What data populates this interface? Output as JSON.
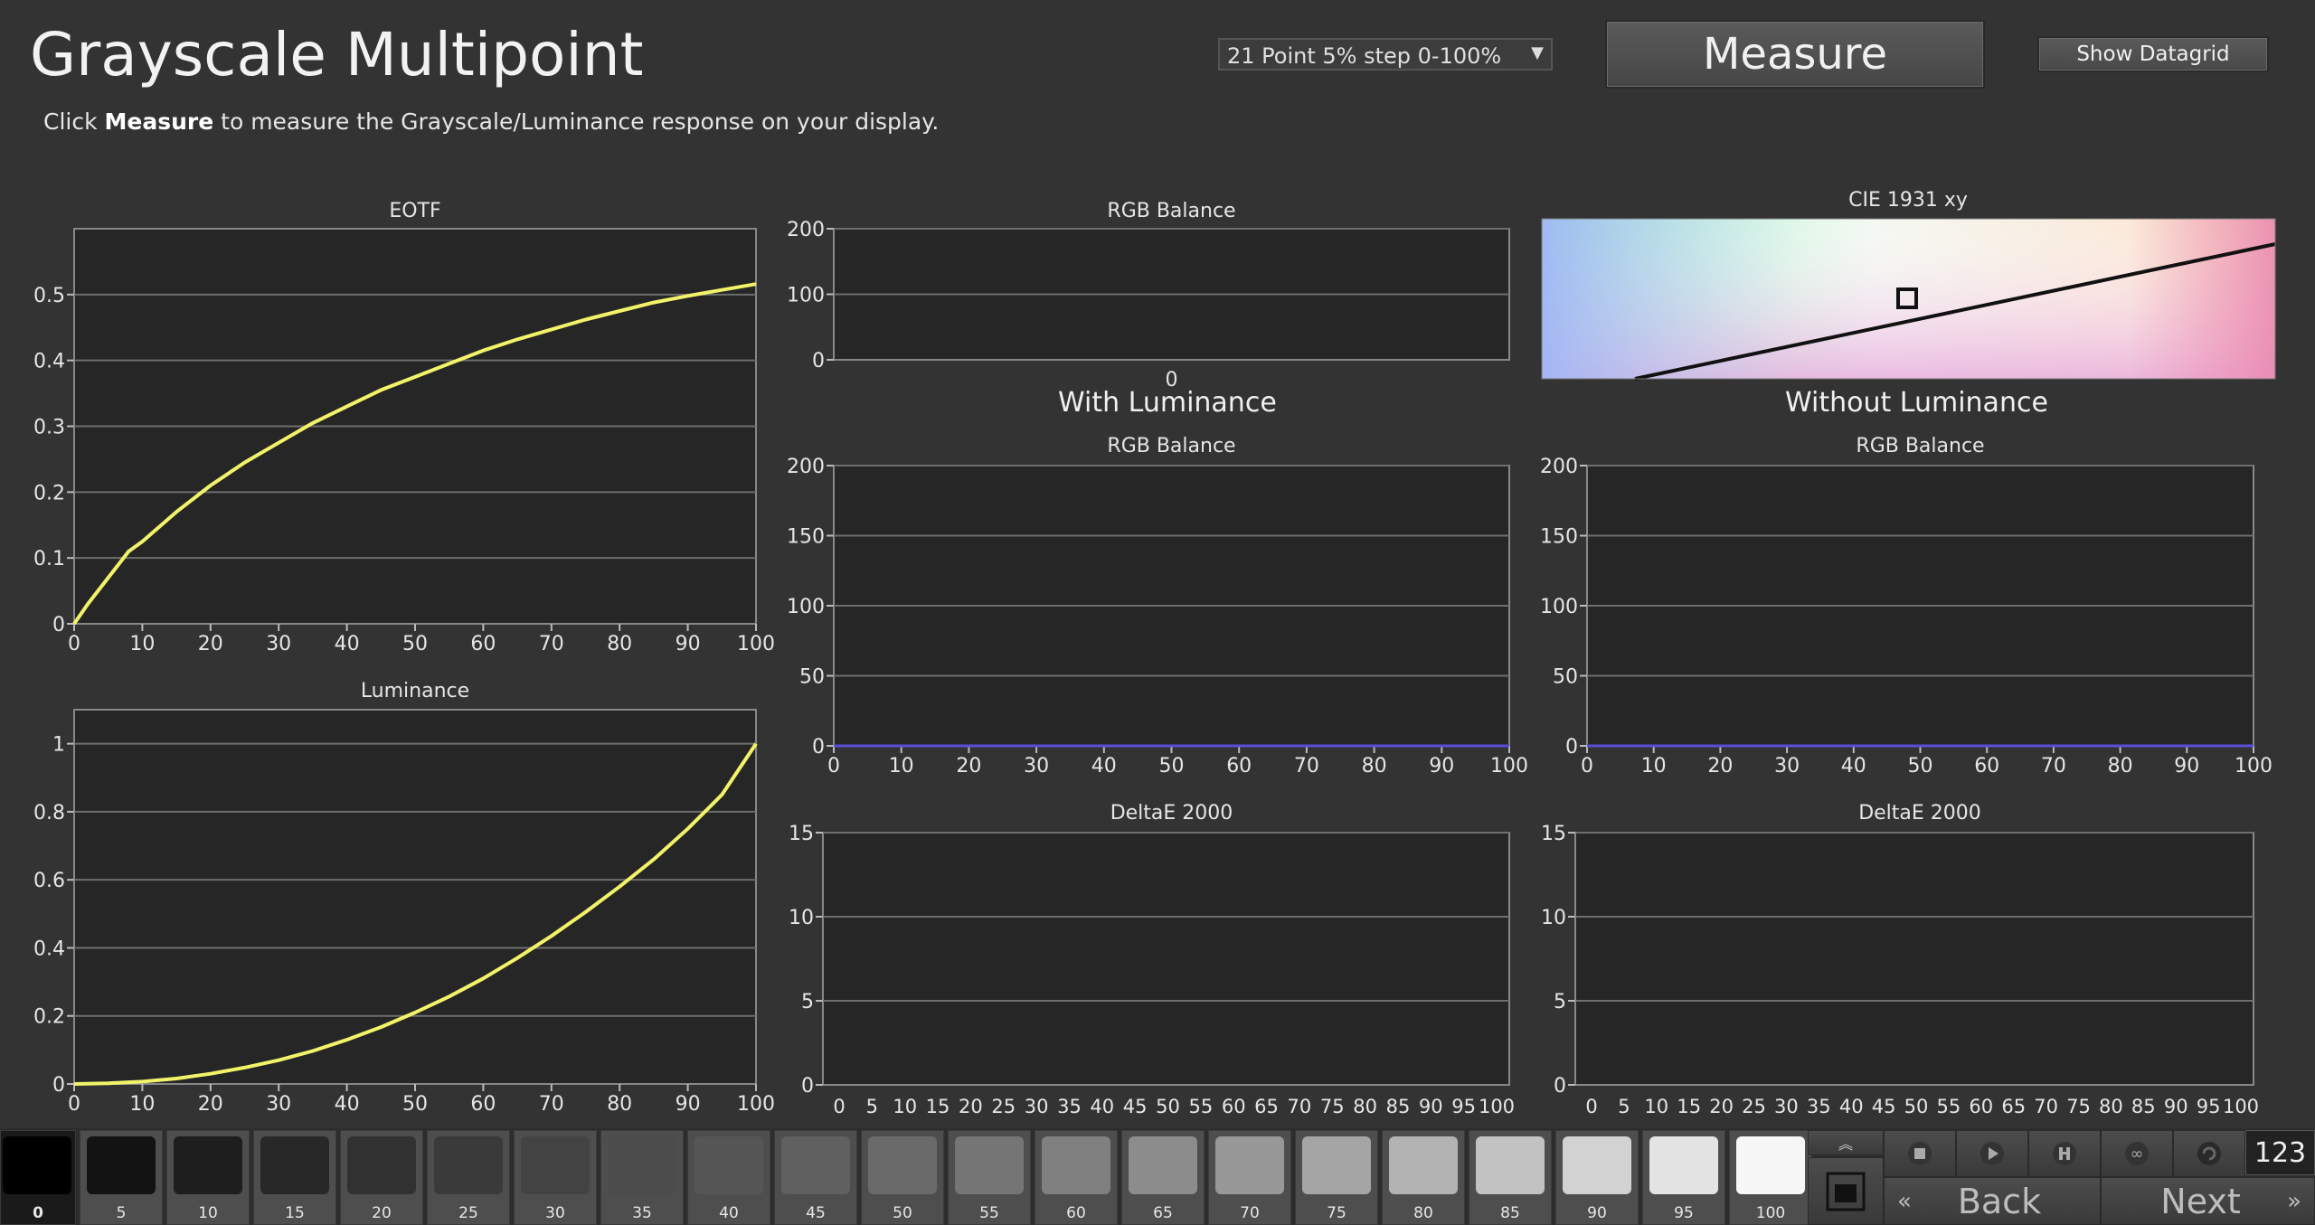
{
  "header": {
    "title": "Grayscale Multipoint",
    "instruction_prefix": "Click ",
    "instruction_bold": "Measure",
    "instruction_suffix": " to measure the Grayscale/Luminance response on your display.",
    "mode_select_value": "21 Point 5% step 0-100%",
    "measure_label": "Measure",
    "datagrid_label": "Show Datagrid"
  },
  "sections": {
    "with_luminance": "With Luminance",
    "without_luminance": "Without Luminance"
  },
  "colors": {
    "background": "#333333",
    "plot_bg": "#262626",
    "grid": "#6e6e6e",
    "curve": "#f3f36a",
    "baseline": "#5a4fd8"
  },
  "chart_data": [
    {
      "id": "eotf",
      "type": "line",
      "title": "EOTF",
      "xlim": [
        0,
        100
      ],
      "ylim": [
        0,
        0.6
      ],
      "x_ticks": [
        "0",
        "10",
        "20",
        "30",
        "40",
        "50",
        "60",
        "70",
        "80",
        "90",
        "100"
      ],
      "y_ticks": [
        "0",
        "0.1",
        "0.2",
        "0.3",
        "0.4",
        "0.5"
      ],
      "series": [
        {
          "x": [
            0,
            2,
            5,
            8,
            10,
            15,
            20,
            25,
            30,
            35,
            40,
            45,
            50,
            55,
            60,
            65,
            70,
            75,
            80,
            85,
            90,
            95,
            100
          ],
          "values": [
            0.0,
            0.03,
            0.07,
            0.11,
            0.125,
            0.17,
            0.21,
            0.245,
            0.275,
            0.305,
            0.33,
            0.355,
            0.375,
            0.395,
            0.415,
            0.432,
            0.447,
            0.462,
            0.475,
            0.488,
            0.498,
            0.507,
            0.516
          ]
        }
      ]
    },
    {
      "id": "luminance",
      "type": "line",
      "title": "Luminance",
      "xlim": [
        0,
        100
      ],
      "ylim": [
        0,
        1.1
      ],
      "x_ticks": [
        "0",
        "10",
        "20",
        "30",
        "40",
        "50",
        "60",
        "70",
        "80",
        "90",
        "100"
      ],
      "y_ticks": [
        "0",
        "0.2",
        "0.4",
        "0.6",
        "0.8",
        "1"
      ],
      "series": [
        {
          "x": [
            0,
            5,
            10,
            15,
            20,
            25,
            30,
            35,
            40,
            45,
            50,
            55,
            60,
            65,
            70,
            75,
            80,
            85,
            90,
            95,
            100
          ],
          "values": [
            0.0,
            0.002,
            0.007,
            0.016,
            0.03,
            0.048,
            0.07,
            0.097,
            0.13,
            0.167,
            0.21,
            0.257,
            0.31,
            0.37,
            0.435,
            0.505,
            0.58,
            0.66,
            0.75,
            0.85,
            1.0
          ]
        }
      ]
    },
    {
      "id": "rgb-balance-top",
      "type": "line",
      "title": "RGB Balance",
      "ylim": [
        0,
        200
      ],
      "x_ticks": [
        "0"
      ],
      "y_ticks": [
        "0",
        "100",
        "200"
      ],
      "series": []
    },
    {
      "id": "cie-1931",
      "type": "scatter",
      "title": "CIE 1931 xy",
      "series": []
    },
    {
      "id": "rgb-balance-with",
      "type": "line",
      "title": "RGB Balance",
      "xlim": [
        0,
        100
      ],
      "ylim": [
        0,
        200
      ],
      "x_ticks": [
        "0",
        "10",
        "20",
        "30",
        "40",
        "50",
        "60",
        "70",
        "80",
        "90",
        "100"
      ],
      "y_ticks": [
        "0",
        "50",
        "100",
        "150",
        "200"
      ],
      "series": [
        {
          "x": [
            0,
            100
          ],
          "values": [
            0,
            0
          ]
        }
      ]
    },
    {
      "id": "rgb-balance-without",
      "type": "line",
      "title": "RGB Balance",
      "xlim": [
        0,
        100
      ],
      "ylim": [
        0,
        200
      ],
      "x_ticks": [
        "0",
        "10",
        "20",
        "30",
        "40",
        "50",
        "60",
        "70",
        "80",
        "90",
        "100"
      ],
      "y_ticks": [
        "0",
        "50",
        "100",
        "150",
        "200"
      ],
      "series": [
        {
          "x": [
            0,
            100
          ],
          "values": [
            0,
            0
          ]
        }
      ]
    },
    {
      "id": "deltae-with",
      "type": "bar",
      "title": "DeltaE 2000",
      "ylim": [
        0,
        15
      ],
      "x_ticks": [
        "0",
        "5",
        "10",
        "15",
        "20",
        "25",
        "30",
        "35",
        "40",
        "45",
        "50",
        "55",
        "60",
        "65",
        "70",
        "75",
        "80",
        "85",
        "90",
        "95",
        "100"
      ],
      "y_ticks": [
        "0",
        "5",
        "10",
        "15"
      ],
      "series": []
    },
    {
      "id": "deltae-without",
      "type": "bar",
      "title": "DeltaE 2000",
      "ylim": [
        0,
        15
      ],
      "x_ticks": [
        "0",
        "5",
        "10",
        "15",
        "20",
        "25",
        "30",
        "35",
        "40",
        "45",
        "50",
        "55",
        "60",
        "65",
        "70",
        "75",
        "80",
        "85",
        "90",
        "95",
        "100"
      ],
      "y_ticks": [
        "0",
        "5",
        "10",
        "15"
      ],
      "series": []
    }
  ],
  "patches": [
    {
      "label": "0",
      "color": "#000000"
    },
    {
      "label": "5",
      "color": "#131313"
    },
    {
      "label": "10",
      "color": "#1e1e1e"
    },
    {
      "label": "15",
      "color": "#282828"
    },
    {
      "label": "20",
      "color": "#313131"
    },
    {
      "label": "25",
      "color": "#3a3a3a"
    },
    {
      "label": "30",
      "color": "#434343"
    },
    {
      "label": "35",
      "color": "#4c4c4c"
    },
    {
      "label": "40",
      "color": "#565656"
    },
    {
      "label": "45",
      "color": "#606060"
    },
    {
      "label": "50",
      "color": "#6a6a6a"
    },
    {
      "label": "55",
      "color": "#757575"
    },
    {
      "label": "60",
      "color": "#808080"
    },
    {
      "label": "65",
      "color": "#8c8c8c"
    },
    {
      "label": "70",
      "color": "#989898"
    },
    {
      "label": "75",
      "color": "#a5a5a5"
    },
    {
      "label": "80",
      "color": "#b3b3b3"
    },
    {
      "label": "85",
      "color": "#c2c2c2"
    },
    {
      "label": "90",
      "color": "#d2d2d2"
    },
    {
      "label": "95",
      "color": "#e3e3e3"
    },
    {
      "label": "100",
      "color": "#f7f7f7"
    }
  ],
  "controls": {
    "counter": "123",
    "back_label": "Back",
    "next_label": "Next"
  }
}
